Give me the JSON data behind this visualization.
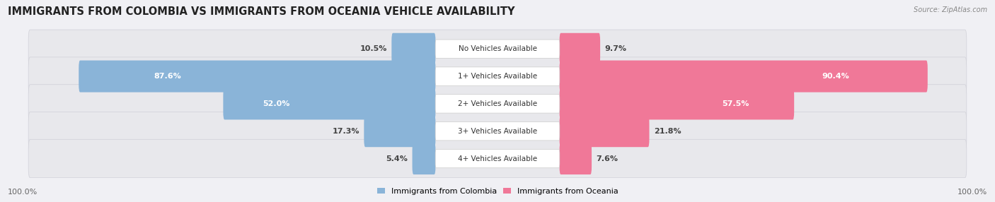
{
  "title": "IMMIGRANTS FROM COLOMBIA VS IMMIGRANTS FROM OCEANIA VEHICLE AVAILABILITY",
  "source": "Source: ZipAtlas.com",
  "categories": [
    "No Vehicles Available",
    "1+ Vehicles Available",
    "2+ Vehicles Available",
    "3+ Vehicles Available",
    "4+ Vehicles Available"
  ],
  "colombia_values": [
    10.5,
    87.6,
    52.0,
    17.3,
    5.4
  ],
  "oceania_values": [
    9.7,
    90.4,
    57.5,
    21.8,
    7.6
  ],
  "colombia_color": "#8ab4d8",
  "oceania_color": "#f07898",
  "label_colombia": "Immigrants from Colombia",
  "label_oceania": "Immigrants from Oceania",
  "max_value": 100.0,
  "title_fontsize": 10.5,
  "bar_label_fontsize": 8,
  "category_fontsize": 7.5,
  "footer_fontsize": 8,
  "row_bg_color": "#e8e8ec",
  "row_edge_color": "#d0d0d8"
}
